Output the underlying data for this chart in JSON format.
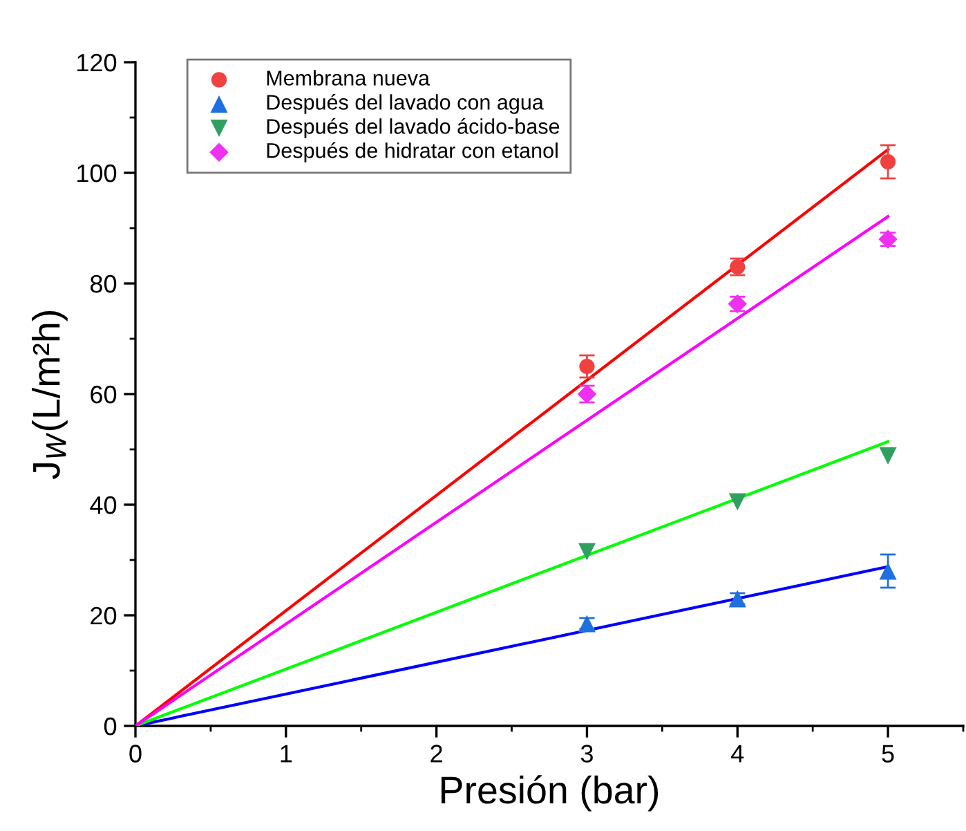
{
  "chart_data": {
    "type": "scatter",
    "xlabel": "Presión (bar)",
    "ylabel": "J$_{W}$(L/m²h)",
    "xlim": [
      0,
      5.5
    ],
    "ylim": [
      0,
      120
    ],
    "xticks": [
      0,
      1,
      2,
      3,
      4,
      5
    ],
    "yticks": [
      0,
      20,
      40,
      60,
      80,
      100,
      120
    ],
    "grid": false,
    "legend": "top left",
    "series": [
      {
        "name": "Membrana nueva",
        "marker": "circle",
        "color": "#f04040",
        "x": [
          3,
          4,
          5
        ],
        "values": [
          65,
          83,
          102
        ],
        "errors": [
          2,
          1.5,
          3
        ]
      },
      {
        "name": "Después del lavado con agua",
        "marker": "triangle",
        "color": "#1e6fe0",
        "x": [
          3,
          4,
          5
        ],
        "values": [
          18.5,
          23,
          28
        ],
        "errors": [
          1,
          1,
          3
        ]
      },
      {
        "name": "Después del lavado ácido-base",
        "marker": "triangle_down",
        "color": "#30a060",
        "x": [
          3,
          4,
          5
        ],
        "values": [
          31.5,
          40.5,
          48.8
        ],
        "errors": [
          null,
          null,
          null
        ]
      },
      {
        "name": "Después de hidratar con etanol",
        "marker": "diamond",
        "color": "#f030f0",
        "x": [
          3,
          4,
          5
        ],
        "values": [
          60,
          76.3,
          88
        ],
        "errors": [
          1.5,
          1.3,
          1.2
        ]
      },
      {
        "type": "line",
        "color": "#ff0000",
        "x": [
          0,
          5
        ],
        "values": [
          0,
          104.2
        ]
      },
      {
        "type": "line",
        "color": "#0000ff",
        "x": [
          0,
          5
        ],
        "values": [
          0,
          28.8
        ]
      },
      {
        "type": "line",
        "color": "#00ff00",
        "x": [
          0,
          5
        ],
        "values": [
          0,
          51.4
        ]
      },
      {
        "type": "line",
        "color": "#ff00ff",
        "x": [
          0,
          5
        ],
        "values": [
          0,
          92.1
        ]
      }
    ]
  }
}
